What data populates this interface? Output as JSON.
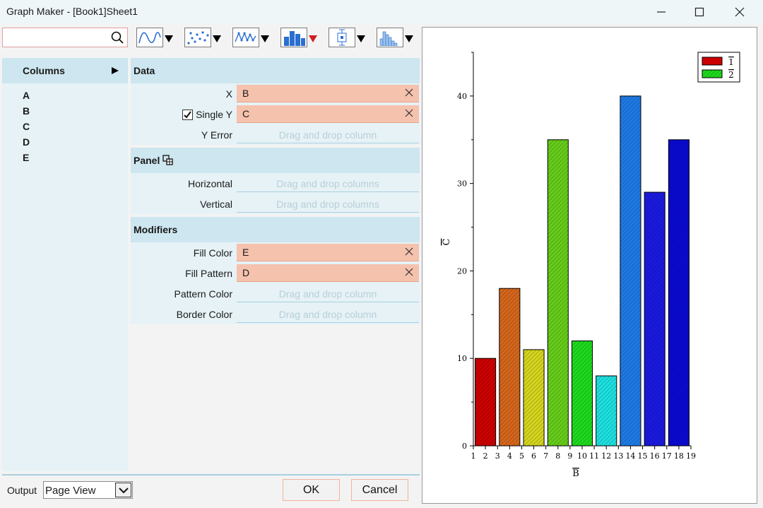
{
  "window": {
    "title": "Graph Maker - [Book1]Sheet1"
  },
  "toolbar": {
    "search": {
      "value": "",
      "placeholder": ""
    },
    "graph_types": [
      "line-graph-icon",
      "scatter-graph-icon",
      "line-symbol-graph-icon",
      "column-graph-icon",
      "box-chart-icon",
      "histogram-icon"
    ]
  },
  "columns_panel": {
    "header": "Columns",
    "items": [
      "A",
      "B",
      "C",
      "D",
      "E"
    ]
  },
  "sections": {
    "data": {
      "title": "Data",
      "x": {
        "label": "X",
        "value": "B"
      },
      "y": {
        "label": "Single Y",
        "value": "C",
        "checked": true
      },
      "yerr": {
        "label": "Y Error",
        "placeholder": "Drag and drop column"
      }
    },
    "panel": {
      "title": "Panel",
      "horizontal": {
        "label": "Horizontal",
        "placeholder": "Drag and drop columns"
      },
      "vertical": {
        "label": "Vertical",
        "placeholder": "Drag and drop columns"
      }
    },
    "modifiers": {
      "title": "Modifiers",
      "fill_color": {
        "label": "Fill Color",
        "value": "E"
      },
      "fill_pattern": {
        "label": "Fill Pattern",
        "value": "D"
      },
      "pattern_color": {
        "label": "Pattern Color",
        "placeholder": "Drag and drop column"
      },
      "border_color": {
        "label": "Border Color",
        "placeholder": "Drag and drop column"
      }
    }
  },
  "footer": {
    "output_label": "Output",
    "output_value": "Page View",
    "ok": "OK",
    "cancel": "Cancel"
  },
  "chart_data": {
    "type": "bar",
    "categories": [
      2,
      4,
      6,
      8,
      10,
      12,
      14,
      16,
      18
    ],
    "values": [
      10,
      18,
      11,
      35,
      12,
      8,
      40,
      29,
      35
    ],
    "colors": [
      "#cc0000",
      "#d4661c",
      "#d4d41e",
      "#66cc1a",
      "#1ed91e",
      "#1ee0e0",
      "#1e7ae6",
      "#1a1ae0",
      "#0a0ad2"
    ],
    "xlabel": "B",
    "ylabel": "C",
    "xlim": [
      1,
      19
    ],
    "ylim": [
      0,
      45
    ],
    "xticks": [
      1,
      2,
      3,
      4,
      5,
      6,
      7,
      8,
      9,
      10,
      11,
      12,
      13,
      14,
      15,
      16,
      17,
      18,
      19
    ],
    "yticks": [
      0,
      10,
      20,
      30,
      40
    ],
    "legend": {
      "position": "top-right",
      "entries": [
        {
          "label": "1",
          "color": "#cc0000"
        },
        {
          "label": "2",
          "color": "#33dd33"
        }
      ]
    }
  }
}
